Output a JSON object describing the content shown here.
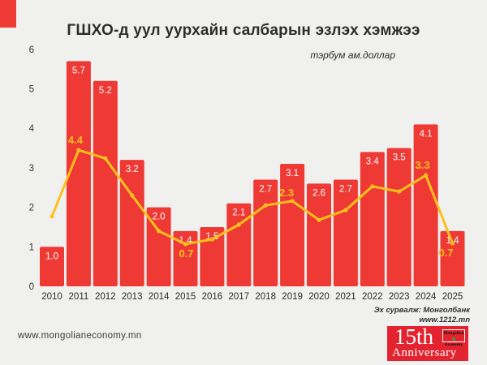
{
  "header": {
    "title": "ГШХО-д уул уурхайн салбарын эзлэх хэмжээ",
    "unit_label": "тэрбум ам.доллар"
  },
  "chart_data": {
    "type": "bar",
    "title": "ГШХО-д уул уурхайн салбарын эзлэх хэмжээ",
    "ylabel": "тэрбум ам.доллар",
    "categories": [
      "2010",
      "2011",
      "2012",
      "2013",
      "2014",
      "2015",
      "2016",
      "2017",
      "2018",
      "2019",
      "2020",
      "2021",
      "2022",
      "2023",
      "2024",
      "2025"
    ],
    "series": [
      {
        "name": "bars",
        "type": "bar",
        "values": [
          1.0,
          5.7,
          5.2,
          3.2,
          2.0,
          1.4,
          1.5,
          2.1,
          2.7,
          3.1,
          2.6,
          2.7,
          3.4,
          3.5,
          4.1,
          1.4
        ]
      },
      {
        "name": "line",
        "type": "line",
        "labeled_points": [
          {
            "year": "2011",
            "text": "4.4",
            "placement": "above"
          },
          {
            "year": "2015",
            "text": "0.7",
            "placement": "below"
          },
          {
            "year": "2019",
            "text": "2.3",
            "placement": "above-left"
          },
          {
            "year": "2024",
            "text": "3.3",
            "placement": "above"
          },
          {
            "year": "2025",
            "text": "0.7",
            "placement": "below-left"
          }
        ],
        "visual_values": [
          1.77,
          3.45,
          3.24,
          2.3,
          1.4,
          1.07,
          1.19,
          1.56,
          2.05,
          2.16,
          1.68,
          1.93,
          2.53,
          2.4,
          2.81,
          1.09
        ]
      }
    ],
    "ylim": [
      0,
      6
    ],
    "yticks": [
      "0",
      "1",
      "2",
      "3",
      "4",
      "5",
      "6"
    ],
    "grid": false,
    "legend": false
  },
  "footer": {
    "watermark": "www.mongolianeconomy.mn",
    "source_line1": "Эх сурвалж: Монголбанк",
    "source_line2": "www.1212.mn"
  },
  "badge": {
    "years_text": "15th",
    "anniversary_text": "Anniversary",
    "logo_line1": "Mongolian",
    "logo_line2": "Economy",
    "leaf_icon": "leaf-icon"
  },
  "colors": {
    "background": "#f0f0ee",
    "bar": "#ee3934",
    "bar_label": "#ffffff",
    "line": "#fcc01e",
    "line_label": "#fcbf1d",
    "axis_text": "#333333",
    "badge_red": "#e32430",
    "leaf_green": "#3f9c35"
  }
}
